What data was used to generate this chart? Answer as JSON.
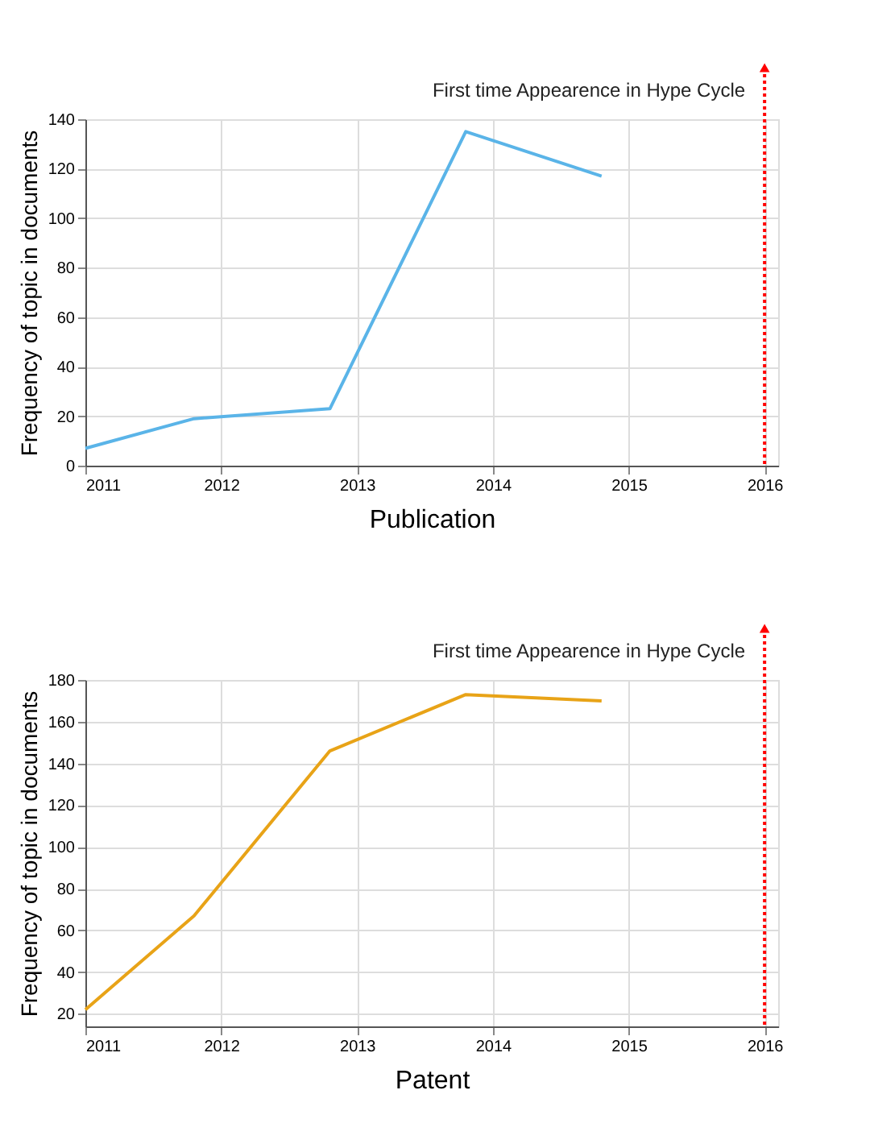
{
  "chart_data": [
    {
      "type": "line",
      "xlabel": "Publication",
      "ylabel": "Frequency of topic in documents",
      "x": [
        2011,
        2011.8,
        2012.8,
        2013.8,
        2014.8
      ],
      "series": [
        {
          "color": "#5ab4e8",
          "values": [
            7,
            19,
            23,
            135,
            117
          ]
        }
      ],
      "xlim": [
        2011,
        2016.1
      ],
      "xticks": [
        2011,
        2012,
        2013,
        2014,
        2015,
        2016
      ],
      "ylim": [
        0,
        140
      ],
      "yticks": [
        0,
        20,
        40,
        60,
        80,
        100,
        120,
        140
      ],
      "grid": true,
      "marker": "none",
      "line_style": "solid",
      "ref_lines": [
        {
          "axis": "x",
          "value": 2016,
          "label": "First time Appearence in Hype Cycle",
          "color": "#ff0000",
          "line_style": "dotted"
        }
      ]
    },
    {
      "type": "line",
      "xlabel": "Patent",
      "ylabel": "Frequency of topic in documents",
      "x": [
        2011,
        2011.8,
        2012.8,
        2013.8,
        2014.8
      ],
      "series": [
        {
          "color": "#e8a317",
          "values": [
            22,
            67,
            146,
            173,
            170
          ]
        }
      ],
      "xlim": [
        2011,
        2016.1
      ],
      "xticks": [
        2011,
        2012,
        2013,
        2014,
        2015,
        2016
      ],
      "ylim": [
        14,
        180
      ],
      "yticks": [
        20,
        40,
        60,
        80,
        100,
        120,
        140,
        160,
        180
      ],
      "grid": true,
      "marker": "none",
      "line_style": "solid",
      "ref_lines": [
        {
          "axis": "x",
          "value": 2016,
          "label": "First time Appearence in Hype Cycle",
          "color": "#ff0000",
          "line_style": "dotted"
        }
      ]
    }
  ]
}
